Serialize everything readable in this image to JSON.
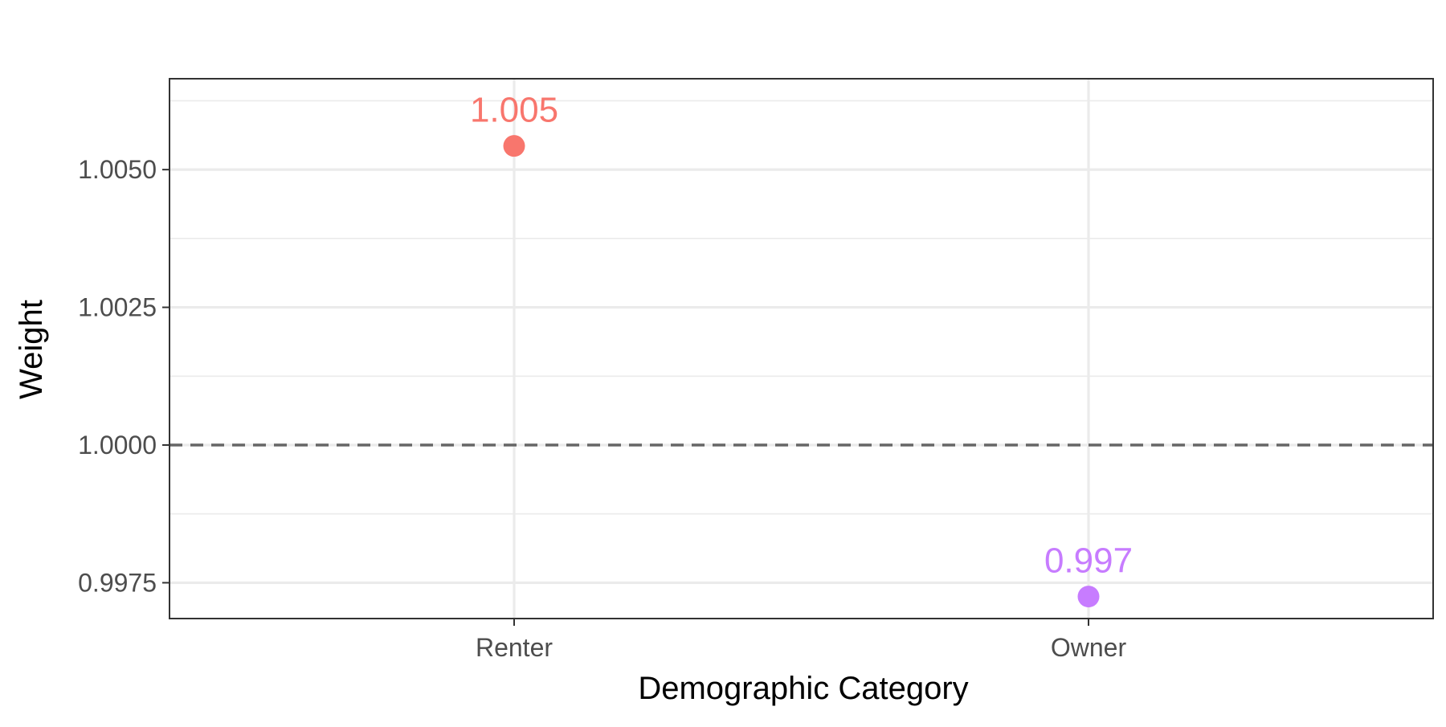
{
  "chart_data": {
    "type": "scatter",
    "title": "",
    "xlabel": "Demographic Category",
    "ylabel": "Weight",
    "categories": [
      "Renter",
      "Owner"
    ],
    "points": [
      {
        "category": "Renter",
        "value": 1.00543,
        "label": "1.005",
        "color": "#F8766D"
      },
      {
        "category": "Owner",
        "value": 0.99725,
        "label": "0.997",
        "color": "#C77CFF"
      }
    ],
    "yticks": [
      "0.9975",
      "1.0000",
      "1.0025",
      "1.0050"
    ],
    "ytick_values": [
      0.9975,
      1.0,
      1.0025,
      1.005
    ],
    "ylim": [
      0.99685,
      1.00665
    ],
    "reference_line": {
      "value": 1.0,
      "style": "dashed",
      "color": "#666666"
    },
    "grid": true,
    "legend": "none",
    "colors": {
      "panel_border": "#333333",
      "grid_major": "#EBEBEB",
      "grid_minor": "#EBEBEB",
      "axis_text": "#4D4D4D",
      "axis_title": "#000000"
    }
  }
}
